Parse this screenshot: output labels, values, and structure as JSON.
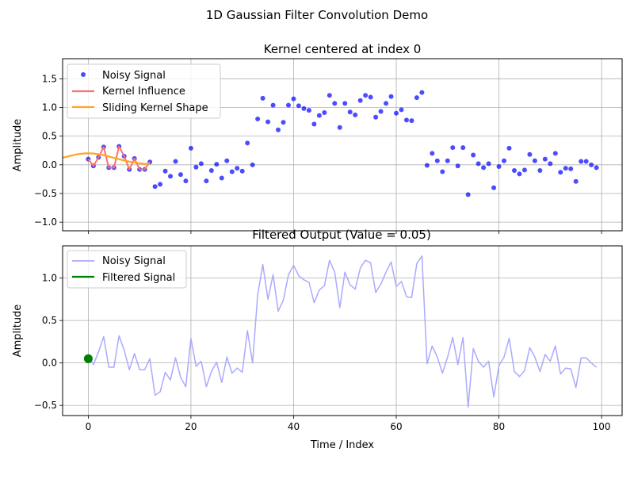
{
  "suptitle": "1D Gaussian Filter Convolution Demo",
  "chart_data": [
    {
      "type": "scatter",
      "title": "Kernel centered at index 0",
      "xlabel": "",
      "ylabel": "Amplitude",
      "xlim": [
        -5,
        104
      ],
      "ylim": [
        -1.15,
        1.85
      ],
      "yticks": [
        -1.0,
        -0.5,
        0.0,
        0.5,
        1.0,
        1.5
      ],
      "ytick_labels": [
        "−1.0",
        "−0.5",
        "0.0",
        "0.5",
        "1.0",
        "1.5"
      ],
      "xticks": [
        0,
        20,
        40,
        60,
        80,
        100
      ],
      "grid": true,
      "legend_position": "top-left",
      "series": [
        {
          "name": "Noisy Signal",
          "kind": "points",
          "color": "#0000ff",
          "x_start": 0,
          "values": [
            0.1,
            -0.02,
            0.13,
            0.31,
            -0.05,
            -0.05,
            0.32,
            0.15,
            -0.08,
            0.11,
            -0.08,
            -0.08,
            0.05,
            -0.38,
            -0.34,
            -0.11,
            -0.2,
            0.06,
            -0.17,
            -0.28,
            0.29,
            -0.04,
            0.02,
            -0.28,
            -0.1,
            0.01,
            -0.23,
            0.07,
            -0.12,
            -0.06,
            -0.11,
            0.38,
            0.0,
            0.8,
            1.16,
            0.75,
            1.04,
            0.61,
            0.74,
            1.04,
            1.15,
            1.03,
            0.98,
            0.95,
            0.71,
            0.86,
            0.91,
            1.21,
            1.07,
            0.65,
            1.07,
            0.92,
            0.87,
            1.12,
            1.21,
            1.18,
            0.83,
            0.93,
            1.07,
            1.19,
            0.9,
            0.96,
            0.78,
            0.77,
            1.17,
            1.26,
            -0.01,
            0.2,
            0.07,
            -0.12,
            0.07,
            0.3,
            -0.02,
            0.3,
            -0.52,
            0.17,
            0.02,
            -0.05,
            0.02,
            -0.4,
            -0.03,
            0.07,
            0.29,
            -0.1,
            -0.16,
            -0.09,
            0.18,
            0.07,
            -0.1,
            0.1,
            0.02,
            0.2,
            -0.13,
            -0.06,
            -0.07,
            -0.29,
            0.06,
            0.06,
            0.0,
            -0.05
          ]
        },
        {
          "name": "Kernel Influence",
          "kind": "line",
          "color": "#ff7070",
          "x": [
            0,
            1,
            2,
            3,
            4,
            5,
            6,
            7,
            8,
            9,
            10,
            11,
            12
          ],
          "y": [
            0.1,
            -0.02,
            0.13,
            0.31,
            -0.05,
            -0.05,
            0.32,
            0.15,
            -0.08,
            0.11,
            -0.08,
            -0.08,
            0.05
          ]
        },
        {
          "name": "Sliding Kernel Shape",
          "kind": "curve",
          "color": "#ffa520",
          "x_range": [
            -5,
            12
          ],
          "peak": 0.2,
          "center": 0,
          "sigma": 5
        }
      ]
    },
    {
      "type": "line",
      "title": "Filtered Output (Value = 0.05)",
      "xlabel": "Time / Index",
      "ylabel": "Amplitude",
      "xlim": [
        -5,
        104
      ],
      "ylim": [
        -0.62,
        1.38
      ],
      "yticks": [
        -0.5,
        0.0,
        0.5,
        1.0
      ],
      "ytick_labels": [
        "−0.5",
        "0.0",
        "0.5",
        "1.0"
      ],
      "xticks": [
        0,
        20,
        40,
        60,
        80,
        100
      ],
      "xtick_labels": [
        "0",
        "20",
        "40",
        "60",
        "80",
        "100"
      ],
      "grid": true,
      "legend_position": "top-left",
      "series": [
        {
          "name": "Noisy Signal",
          "kind": "line",
          "color": "#aaaaff",
          "x_start": 0,
          "values": [
            0.1,
            -0.02,
            0.13,
            0.31,
            -0.05,
            -0.05,
            0.32,
            0.15,
            -0.08,
            0.11,
            -0.08,
            -0.08,
            0.05,
            -0.38,
            -0.34,
            -0.11,
            -0.2,
            0.06,
            -0.17,
            -0.28,
            0.29,
            -0.04,
            0.02,
            -0.28,
            -0.1,
            0.01,
            -0.23,
            0.07,
            -0.12,
            -0.06,
            -0.11,
            0.38,
            0.0,
            0.8,
            1.16,
            0.75,
            1.04,
            0.61,
            0.74,
            1.04,
            1.15,
            1.03,
            0.98,
            0.95,
            0.71,
            0.86,
            0.91,
            1.21,
            1.07,
            0.65,
            1.07,
            0.92,
            0.87,
            1.12,
            1.21,
            1.18,
            0.83,
            0.93,
            1.07,
            1.19,
            0.9,
            0.96,
            0.78,
            0.77,
            1.17,
            1.26,
            -0.01,
            0.2,
            0.07,
            -0.12,
            0.07,
            0.3,
            -0.02,
            0.3,
            -0.52,
            0.17,
            0.02,
            -0.05,
            0.02,
            -0.4,
            -0.03,
            0.07,
            0.29,
            -0.1,
            -0.16,
            -0.09,
            0.18,
            0.07,
            -0.1,
            0.1,
            0.02,
            0.2,
            -0.13,
            -0.06,
            -0.07,
            -0.29,
            0.06,
            0.06,
            0.0,
            -0.05
          ]
        },
        {
          "name": "Filtered Signal",
          "kind": "line",
          "color": "#008000",
          "x": [
            0
          ],
          "y": [
            0.05
          ],
          "marker": true
        }
      ]
    }
  ]
}
